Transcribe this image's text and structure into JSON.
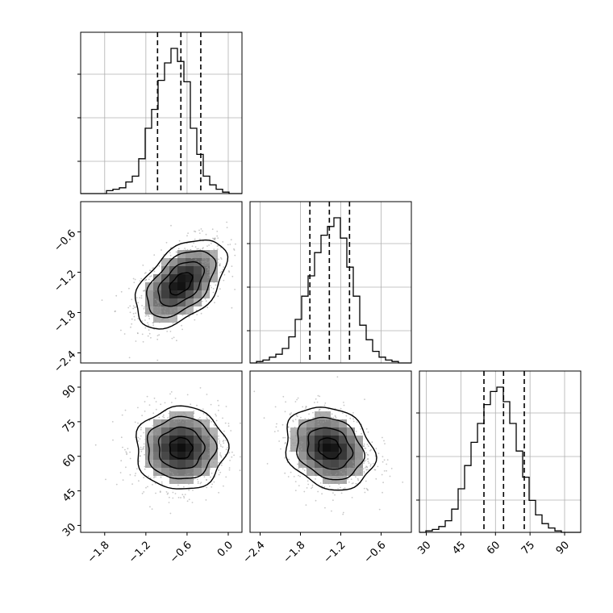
{
  "chart_data": {
    "type": "corner",
    "grid": true,
    "colors": {
      "frame": "#000000",
      "grid": "#b0b0b0",
      "points": "#9a9a9a",
      "background": "#ffffff"
    },
    "parameters": [
      {
        "name": "",
        "range": [
          -2.15,
          0.2
        ],
        "tick_labels": [
          "-1.8",
          "-1.2",
          "-0.6",
          "0.0"
        ],
        "quantiles": [
          -1.03,
          -0.69,
          -0.4
        ]
      },
      {
        "name": "",
        "range": [
          -2.55,
          -0.15
        ],
        "tick_labels": [
          "-2.4",
          "-1.8",
          "-1.2",
          "-0.6"
        ],
        "quantiles": [
          -1.66,
          -1.37,
          -1.07
        ]
      },
      {
        "name": "",
        "range": [
          27,
          97
        ],
        "tick_labels": [
          "30",
          "45",
          "60",
          "75",
          "90"
        ],
        "quantiles": [
          55,
          63.5,
          72.5
        ]
      }
    ],
    "histograms": [
      {
        "panel": "1,1",
        "counts": [
          0,
          0,
          0,
          0,
          0.02,
          0.03,
          0.04,
          0.08,
          0.12,
          0.24,
          0.45,
          0.58,
          0.78,
          0.9,
          1.0,
          0.91,
          0.77,
          0.45,
          0.27,
          0.12,
          0.06,
          0.03,
          0.01,
          0,
          0
        ]
      },
      {
        "panel": "2,2",
        "counts": [
          0,
          0.01,
          0.02,
          0.04,
          0.06,
          0.1,
          0.18,
          0.3,
          0.46,
          0.6,
          0.76,
          0.88,
          0.94,
          1.0,
          0.86,
          0.66,
          0.46,
          0.26,
          0.16,
          0.08,
          0.04,
          0.02,
          0.01,
          0,
          0
        ]
      },
      {
        "panel": "3,3",
        "counts": [
          0,
          0.01,
          0.02,
          0.04,
          0.08,
          0.16,
          0.3,
          0.46,
          0.62,
          0.75,
          0.88,
          0.97,
          1.0,
          0.9,
          0.75,
          0.56,
          0.38,
          0.22,
          0.12,
          0.06,
          0.03,
          0.01,
          0,
          0,
          0
        ]
      }
    ],
    "pairs": [
      {
        "panel": "2,1",
        "mean": [
          -0.69,
          -1.37
        ],
        "std": [
          0.33,
          0.33
        ],
        "corr": 0.5
      },
      {
        "panel": "3,1",
        "mean": [
          -0.69,
          63.5
        ],
        "std": [
          0.33,
          9.0
        ],
        "corr": 0.0
      },
      {
        "panel": "3,2",
        "mean": [
          -1.37,
          63.5
        ],
        "std": [
          0.33,
          9.0
        ],
        "corr": -0.2
      }
    ]
  }
}
